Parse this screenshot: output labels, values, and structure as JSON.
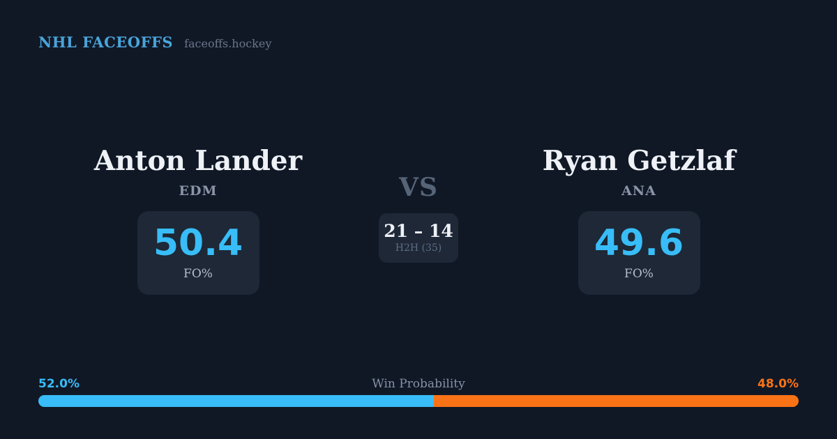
{
  "header": {
    "brand": "NHL FACEOFFS",
    "site": "faceoffs.hockey"
  },
  "matchup": {
    "player1": {
      "name": "Anton Lander",
      "team": "EDM",
      "fo_pct": "50.4",
      "stat_label": "FO%"
    },
    "player2": {
      "name": "Ryan Getzlaf",
      "team": "ANA",
      "fo_pct": "49.6",
      "stat_label": "FO%"
    },
    "vs_label": "VS",
    "h2h": {
      "score": "21 – 14",
      "label": "H2H (35)"
    }
  },
  "win_probability": {
    "title": "Win Probability",
    "player1_pct_label": "52.0%",
    "player2_pct_label": "48.0%",
    "player1_value": 52.0,
    "player2_value": 48.0,
    "player1_color": "#38bdf8",
    "player2_color": "#f97316"
  },
  "colors": {
    "background": "#101826",
    "card": "#1e2836",
    "accent_blue": "#38bdf8",
    "accent_orange": "#f97316",
    "brand_blue": "#4aa4da"
  }
}
